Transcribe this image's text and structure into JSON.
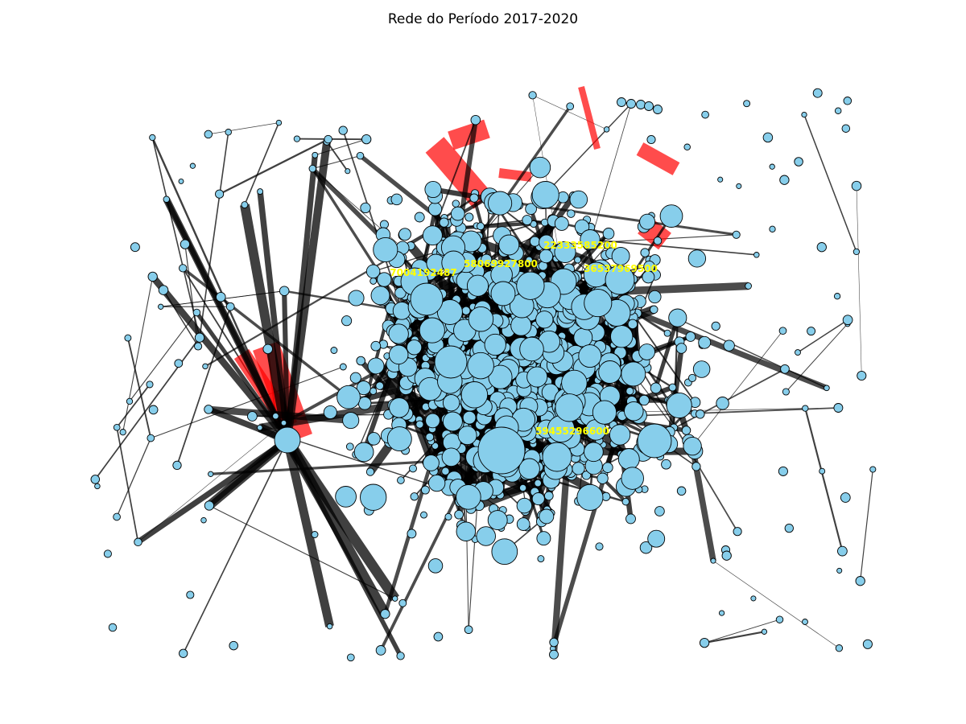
{
  "title": "Rede do Período 2017-2020",
  "colors": {
    "background": "#ffffff",
    "node_fill": "#87ceeb",
    "node_stroke": "#000000",
    "edge_default": "#000000",
    "edge_highlight": "#ff0000",
    "label_color": "#ffff00"
  },
  "chart_data": {
    "type": "network",
    "title": "Rede do Período 2017-2020",
    "axes_visible": false,
    "labeled_nodes": [
      {
        "id": "22333585200"
      },
      {
        "id": "58069927800"
      },
      {
        "id": "36537969500"
      },
      {
        "id": "7004192487"
      },
      {
        "id": "59455296600"
      }
    ]
  }
}
